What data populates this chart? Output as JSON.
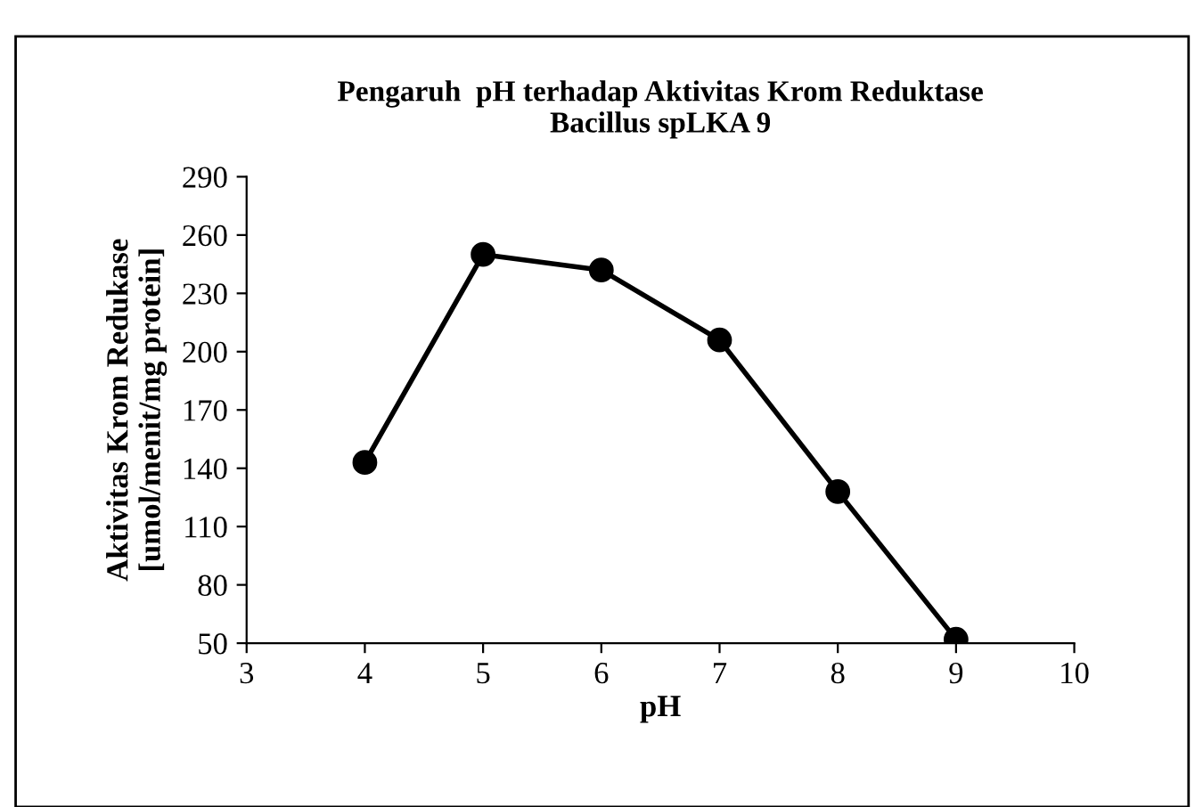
{
  "chart_data": {
    "type": "line",
    "title": "Pengaruh  pH terhadap Aktivitas Krom Reduktase\nBacillus spLKA 9",
    "xlabel": "pH",
    "ylabel": "Aktivitas Krom Redukase\n[umol/menit/mg protein]",
    "x": [
      4,
      5,
      6,
      7,
      8,
      9
    ],
    "series": [
      {
        "color": "#000000",
        "values": [
          143,
          250,
          242,
          206,
          128,
          52
        ]
      }
    ],
    "xlim": [
      3,
      10
    ],
    "xticks": [
      3,
      4,
      5,
      6,
      7,
      8,
      9,
      10
    ],
    "ylim": [
      50,
      290
    ],
    "yticks": [
      50,
      80,
      110,
      140,
      170,
      200,
      230,
      260,
      290
    ],
    "grid": false,
    "legend": false,
    "marker": "circle",
    "line_style": "solid"
  }
}
